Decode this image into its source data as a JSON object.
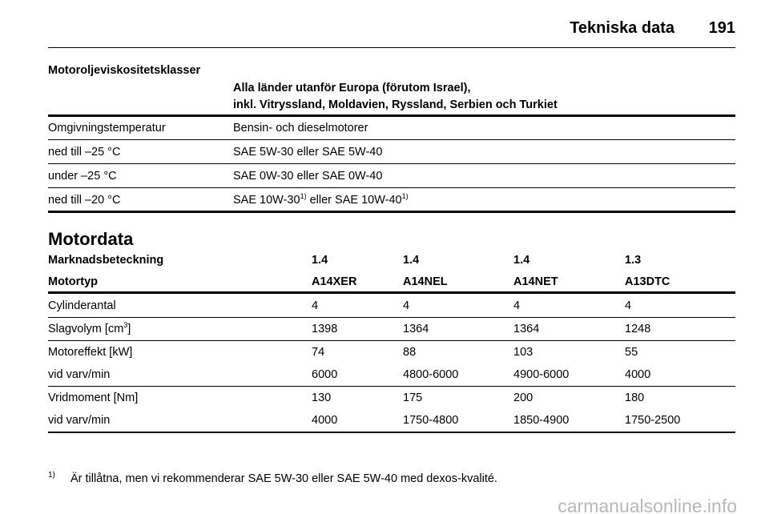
{
  "header": {
    "title": "Tekniska data",
    "page": "191"
  },
  "oil": {
    "title": "Motoroljeviskositetsklasser",
    "region": [
      "Alla länder utanför Europa (förutom Israel),",
      "inkl. Vitryssland, Moldavien, Ryssland, Serbien och Turkiet"
    ],
    "columns": [
      "Omgivningstemperatur",
      "Bensin- och dieselmotorer"
    ],
    "rows": [
      [
        "ned till –25 °C",
        "SAE 5W-30 eller SAE 5W-40"
      ],
      [
        "under –25 °C",
        "SAE 0W-30 eller SAE 0W-40"
      ],
      [
        "ned till –20 °C",
        {
          "parts": [
            {
              "text": "SAE 10W-30",
              "sup": "1)"
            },
            {
              "text": " eller SAE 10W-40",
              "sup": "1)"
            }
          ]
        }
      ]
    ]
  },
  "engine": {
    "title": "Motordata",
    "header_rows": [
      [
        "Marknadsbeteckning",
        "1.4",
        "1.4",
        "1.4",
        "1.3"
      ],
      [
        "Motortyp",
        "A14XER",
        "A14NEL",
        "A14NET",
        "A13DTC"
      ]
    ],
    "groups": [
      [
        [
          "Cylinderantal",
          "4",
          "4",
          "4",
          "4"
        ]
      ],
      [
        [
          {
            "parts": [
              {
                "text": "Slagvolym [cm",
                "sup": "3"
              },
              {
                "text": "]"
              }
            ]
          },
          "1398",
          "1364",
          "1364",
          "1248"
        ]
      ],
      [
        [
          "Motoreffekt [kW]",
          "74",
          "88",
          "103",
          "55"
        ],
        [
          "vid varv/min",
          "6000",
          "4800-6000",
          "4900-6000",
          "4000"
        ]
      ],
      [
        [
          "Vridmoment [Nm]",
          "130",
          "175",
          "200",
          "180"
        ],
        [
          "vid varv/min",
          "4000",
          "1750-4800",
          "1850-4900",
          "1750-2500"
        ]
      ]
    ]
  },
  "footnote": {
    "mark": "1)",
    "text": "Är tillåtna, men vi rekommenderar SAE 5W-30 eller SAE 5W-40 med dexos-kvalité."
  },
  "watermark": "carmanualsonline.info"
}
